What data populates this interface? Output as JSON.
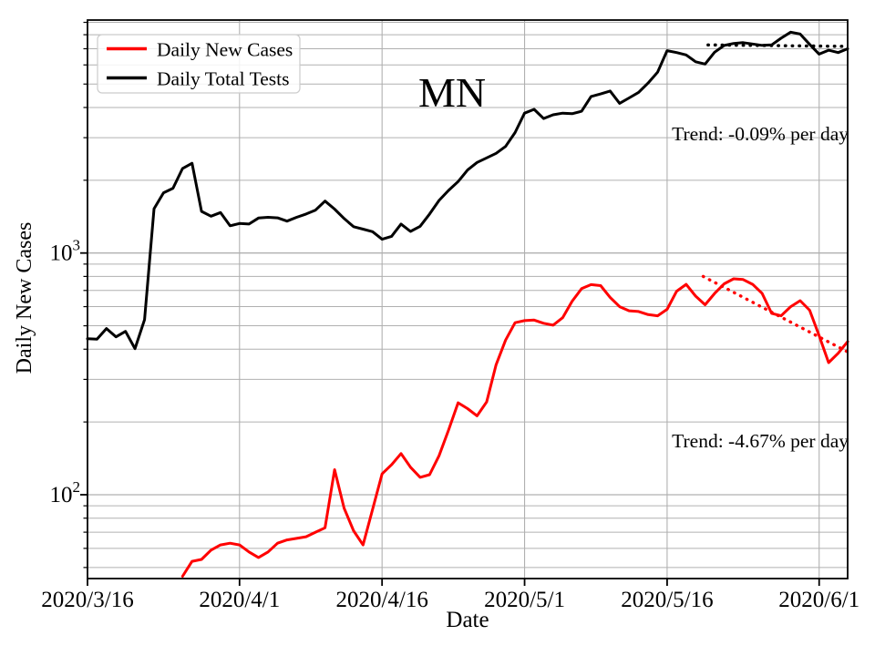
{
  "chart_data": {
    "type": "line",
    "title": "MN",
    "xlabel": "Date",
    "ylabel": "Daily New Cases",
    "yscale": "log",
    "grid": true,
    "ylim": [
      45,
      9200
    ],
    "xlim_days": [
      0,
      80
    ],
    "x_start_date": "2020/3/16",
    "x_ticks": [
      {
        "day": 0,
        "label": "2020/3/16"
      },
      {
        "day": 16,
        "label": "2020/4/1"
      },
      {
        "day": 31,
        "label": "2020/4/16"
      },
      {
        "day": 46,
        "label": "2020/5/1"
      },
      {
        "day": 61,
        "label": "2020/5/16"
      },
      {
        "day": 77,
        "label": "2020/6/1"
      }
    ],
    "y_ticks": [
      {
        "value": 100,
        "base": "10",
        "exp": "2"
      },
      {
        "value": 1000,
        "base": "10",
        "exp": "3"
      }
    ],
    "colors": {
      "cases": "#ff0000",
      "tests": "#000000",
      "grid": "#b0b0b0",
      "legend_border": "#cccccc"
    },
    "series": [
      {
        "name": "Daily New Cases",
        "color": "#ff0000",
        "start_day": 10,
        "values": [
          46,
          53,
          54,
          59,
          62,
          63,
          62,
          58,
          55,
          58,
          63,
          65,
          66,
          67,
          70,
          73,
          127,
          88,
          71,
          62,
          87,
          122,
          133,
          148,
          130,
          118,
          121,
          145,
          185,
          240,
          227,
          212,
          242,
          345,
          436,
          515,
          525,
          528,
          512,
          503,
          540,
          632,
          712,
          740,
          733,
          655,
          600,
          577,
          573,
          556,
          550,
          585,
          695,
          742,
          663,
          611,
          680,
          746,
          782,
          777,
          742,
          680,
          563,
          550,
          600,
          635,
          580,
          455,
          352,
          385,
          430
        ]
      },
      {
        "name": "Daily Total Tests",
        "color": "#000000",
        "start_day": 0,
        "values": [
          442,
          440,
          487,
          450,
          474,
          402,
          530,
          1525,
          1774,
          1853,
          2237,
          2350,
          1487,
          1420,
          1470,
          1296,
          1325,
          1318,
          1395,
          1405,
          1398,
          1355,
          1405,
          1450,
          1505,
          1640,
          1520,
          1390,
          1285,
          1255,
          1225,
          1140,
          1172,
          1318,
          1228,
          1290,
          1450,
          1650,
          1815,
          1975,
          2205,
          2370,
          2475,
          2585,
          2760,
          3150,
          3790,
          3930,
          3600,
          3730,
          3790,
          3770,
          3860,
          4440,
          4550,
          4680,
          4160,
          4380,
          4620,
          5050,
          5600,
          6870,
          6750,
          6600,
          6180,
          6050,
          6770,
          7220,
          7360,
          7420,
          7320,
          7230,
          7260,
          7740,
          8200,
          8050,
          7300,
          6650,
          6900,
          6750,
          7000
        ]
      }
    ],
    "trend_lines": [
      {
        "series": "Daily New Cases",
        "label": "Trend: -4.67% per day",
        "color": "#ff0000",
        "start_day": 64.8,
        "start_value": 800,
        "end_day": 80,
        "end_value": 390
      },
      {
        "series": "Daily Total Tests",
        "label": "Trend: -0.09% per day",
        "color": "#000000",
        "start_day": 65.3,
        "start_value": 7260,
        "end_day": 80,
        "end_value": 7160
      }
    ],
    "legend": {
      "position": "upper left",
      "entries": [
        "Daily New Cases",
        "Daily Total Tests"
      ]
    }
  }
}
